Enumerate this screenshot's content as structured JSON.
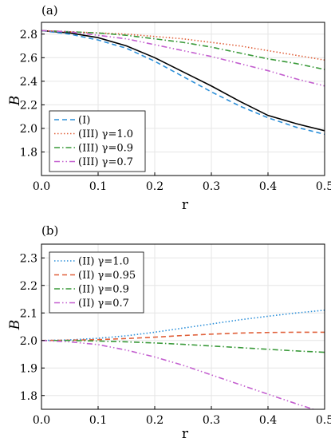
{
  "chart_data": [
    {
      "panel_label": "(a)",
      "type": "line",
      "xlabel": "r",
      "ylabel": "B",
      "xlim": [
        0.0,
        0.5
      ],
      "ylim": [
        1.6,
        2.9
      ],
      "xticks": [
        "0.0",
        "0.1",
        "0.2",
        "0.3",
        "0.4",
        "0.5"
      ],
      "yticks": [
        "1.8",
        "2.0",
        "2.2",
        "2.4",
        "2.6",
        "2.8"
      ],
      "grid": true,
      "legend_position": "bottom-left",
      "series": [
        {
          "name": "",
          "color": "#000000",
          "dash": "solid",
          "x": [
            0.0,
            0.05,
            0.1,
            0.15,
            0.2,
            0.25,
            0.3,
            0.35,
            0.4,
            0.45,
            0.5
          ],
          "y": [
            2.83,
            2.81,
            2.77,
            2.7,
            2.6,
            2.48,
            2.36,
            2.23,
            2.11,
            2.04,
            1.98
          ]
        },
        {
          "name": "(I)",
          "color": "#2b8fd9",
          "dash": "dashed",
          "x": [
            0.0,
            0.05,
            0.1,
            0.15,
            0.2,
            0.25,
            0.3,
            0.35,
            0.4,
            0.45,
            0.5
          ],
          "y": [
            2.83,
            2.8,
            2.75,
            2.68,
            2.57,
            2.44,
            2.31,
            2.19,
            2.09,
            2.01,
            1.95
          ]
        },
        {
          "name": "(III) γ=1.0",
          "color": "#e0603a",
          "dash": "dotted",
          "x": [
            0.0,
            0.05,
            0.1,
            0.15,
            0.2,
            0.25,
            0.3,
            0.35,
            0.4,
            0.45,
            0.5
          ],
          "y": [
            2.83,
            2.82,
            2.81,
            2.8,
            2.78,
            2.76,
            2.73,
            2.7,
            2.66,
            2.62,
            2.58
          ]
        },
        {
          "name": "(III) γ=0.9",
          "color": "#3a9a3a",
          "dash": "dashdot",
          "x": [
            0.0,
            0.05,
            0.1,
            0.15,
            0.2,
            0.25,
            0.3,
            0.35,
            0.4,
            0.45,
            0.5
          ],
          "y": [
            2.83,
            2.82,
            2.81,
            2.79,
            2.76,
            2.73,
            2.69,
            2.64,
            2.59,
            2.55,
            2.5
          ]
        },
        {
          "name": "(III) γ=0.7",
          "color": "#c35fcf",
          "dash": "dashdotdot",
          "x": [
            0.0,
            0.05,
            0.1,
            0.15,
            0.2,
            0.25,
            0.3,
            0.35,
            0.4,
            0.45,
            0.5
          ],
          "y": [
            2.83,
            2.82,
            2.79,
            2.76,
            2.71,
            2.66,
            2.61,
            2.55,
            2.49,
            2.42,
            2.36
          ]
        }
      ]
    },
    {
      "panel_label": "(b)",
      "type": "line",
      "xlabel": "r",
      "ylabel": "B",
      "xlim": [
        0.0,
        0.5
      ],
      "ylim": [
        1.75,
        2.35
      ],
      "xticks": [
        "0.0",
        "0.1",
        "0.2",
        "0.3",
        "0.4",
        "0.5"
      ],
      "yticks": [
        "1.8",
        "1.9",
        "2.0",
        "2.1",
        "2.2",
        "2.3"
      ],
      "grid": true,
      "legend_position": "top-left",
      "series": [
        {
          "name": "(II) γ=1.0",
          "color": "#2b8fd9",
          "dash": "dotted",
          "x": [
            0.0,
            0.05,
            0.1,
            0.15,
            0.2,
            0.25,
            0.3,
            0.35,
            0.4,
            0.45,
            0.5
          ],
          "y": [
            2.0,
            2.002,
            2.008,
            2.017,
            2.03,
            2.045,
            2.06,
            2.075,
            2.088,
            2.1,
            2.11
          ]
        },
        {
          "name": "(II) γ=0.95",
          "color": "#e0603a",
          "dash": "dashed",
          "x": [
            0.0,
            0.05,
            0.1,
            0.15,
            0.2,
            0.25,
            0.3,
            0.35,
            0.4,
            0.45,
            0.5
          ],
          "y": [
            2.0,
            2.001,
            2.003,
            2.007,
            2.012,
            2.018,
            2.023,
            2.027,
            2.029,
            2.03,
            2.03
          ]
        },
        {
          "name": "(II) γ=0.9",
          "color": "#3a9a3a",
          "dash": "dashdot",
          "x": [
            0.0,
            0.05,
            0.1,
            0.15,
            0.2,
            0.25,
            0.3,
            0.35,
            0.4,
            0.45,
            0.5
          ],
          "y": [
            2.0,
            2.0,
            1.998,
            1.995,
            1.991,
            1.986,
            1.98,
            1.974,
            1.968,
            1.962,
            1.957
          ]
        },
        {
          "name": "(II) γ=0.7",
          "color": "#c35fcf",
          "dash": "dashdotdot",
          "x": [
            0.0,
            0.05,
            0.1,
            0.15,
            0.2,
            0.25,
            0.3,
            0.35,
            0.4,
            0.45,
            0.48
          ],
          "y": [
            2.0,
            1.995,
            1.985,
            1.965,
            1.94,
            1.91,
            1.875,
            1.84,
            1.805,
            1.77,
            1.75
          ]
        }
      ]
    }
  ]
}
